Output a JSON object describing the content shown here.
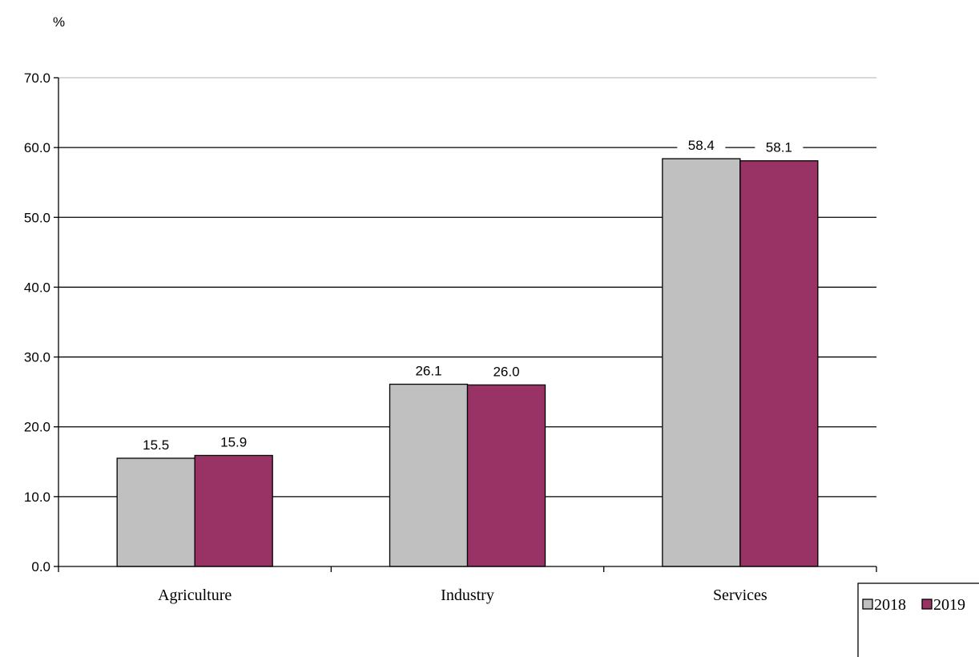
{
  "chart_data": {
    "type": "bar",
    "ylabel": "%",
    "categories": [
      "Agriculture",
      "Industry",
      "Services"
    ],
    "series": [
      {
        "name": "2018",
        "values": [
          15.5,
          26.1,
          58.4
        ],
        "color": "#c0c0c0"
      },
      {
        "name": "2019",
        "values": [
          15.9,
          26.0,
          58.1
        ],
        "color": "#993366"
      }
    ],
    "ylim": [
      0,
      70
    ],
    "yticks": [
      "0.0",
      "10.0",
      "20.0",
      "30.0",
      "40.0",
      "50.0",
      "60.0",
      "70.0"
    ],
    "grid": true,
    "legend_position": "bottom-right"
  }
}
